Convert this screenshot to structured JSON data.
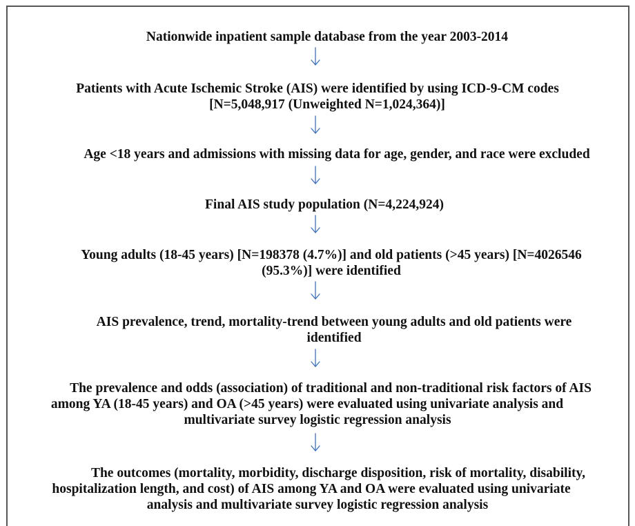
{
  "flowchart": {
    "steps": [
      {
        "id": "s1",
        "lines": [
          "Nationwide inpatient sample database from the year 2003-2014"
        ]
      },
      {
        "id": "s2",
        "lines": [
          "Patients with Acute Ischemic Stroke (AIS) were identified by using ICD-9-CM codes",
          "[N=5,048,917 (Unweighted N=1,024,364)]"
        ]
      },
      {
        "id": "s3",
        "lines": [
          "Age <18 years and admissions with missing data for age, gender, and race were excluded"
        ]
      },
      {
        "id": "s4",
        "lines": [
          "Final AIS study population (N=4,224,924)"
        ]
      },
      {
        "id": "s5",
        "lines": [
          "Young adults (18-45 years) [N=198378 (4.7%)] and old patients (>45 years) [N=4026546",
          "(95.3%)] were identified"
        ]
      },
      {
        "id": "s6",
        "lines": [
          "AIS prevalence, trend, mortality-trend between young adults and old patients were",
          "identified"
        ]
      },
      {
        "id": "s7",
        "lines": [
          "The prevalence and odds (association) of traditional and non-traditional risk factors of AIS",
          "among YA (18-45 years) and OA (>45 years) were evaluated using univariate analysis and",
          "multivariate survey logistic regression analysis"
        ]
      },
      {
        "id": "s8",
        "lines": [
          "The outcomes (mortality, morbidity, discharge disposition, risk of mortality, disability,",
          "hospitalization length, and cost) of AIS among YA and OA were evaluated using univariate",
          "analysis and multivariate survey logistic regression analysis"
        ]
      }
    ],
    "arrow_color": "#3a6fc4",
    "border_color": "#555555"
  }
}
